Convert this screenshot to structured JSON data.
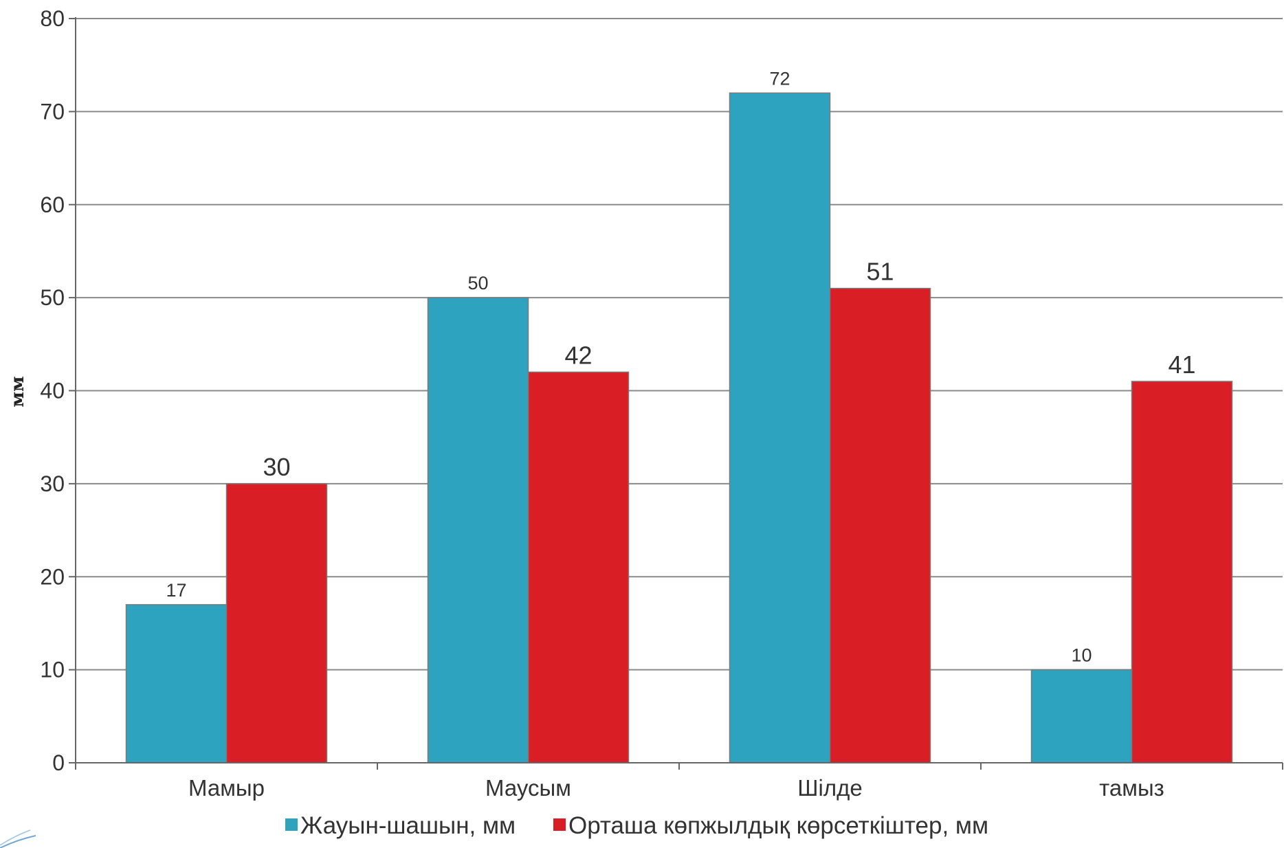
{
  "chart_data": {
    "type": "bar",
    "title": "",
    "xlabel": "",
    "ylabel": "мм",
    "ylim": [
      0,
      80
    ],
    "yticks": [
      0,
      10,
      20,
      30,
      40,
      50,
      60,
      70,
      80
    ],
    "categories": [
      "Мамыр",
      "Маусым",
      "Шілде",
      "тамыз"
    ],
    "grid": true,
    "legend_position": "bottom",
    "series": [
      {
        "name": "Жауын-шашын, мм",
        "color": "#2ea3bf",
        "values": [
          17,
          50,
          72,
          10
        ]
      },
      {
        "name": "Орташа көпжылдық көрсеткіштер, мм",
        "color": "#d91e26",
        "values": [
          30,
          42,
          51,
          41
        ]
      }
    ]
  }
}
